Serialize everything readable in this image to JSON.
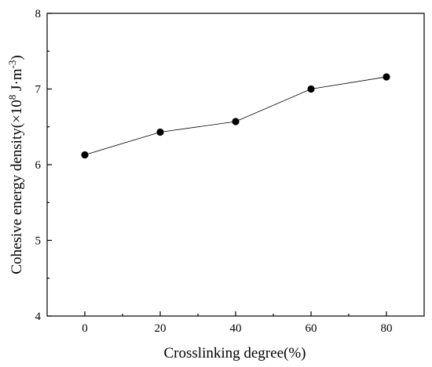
{
  "chart_data": {
    "type": "line",
    "x": [
      0,
      20,
      40,
      60,
      80
    ],
    "series": [
      {
        "values": [
          6.13,
          6.43,
          6.57,
          7.0,
          7.16
        ]
      }
    ],
    "xlabel": "Crosslinking degree(%)",
    "ylabel_parts": {
      "main": "Cohesive energy density(×10",
      "exp1": "8",
      "unit": " J·m",
      "exp2": "-3",
      "close": ")"
    },
    "xlim": [
      -10,
      90
    ],
    "ylim": [
      4,
      8
    ],
    "xticks": [
      "0",
      "20",
      "40",
      "60",
      "80"
    ],
    "yticks": [
      "4",
      "5",
      "6",
      "7",
      "8"
    ],
    "grid": false,
    "marker": "circle",
    "line_color": "#000000",
    "marker_color": "#000000"
  }
}
